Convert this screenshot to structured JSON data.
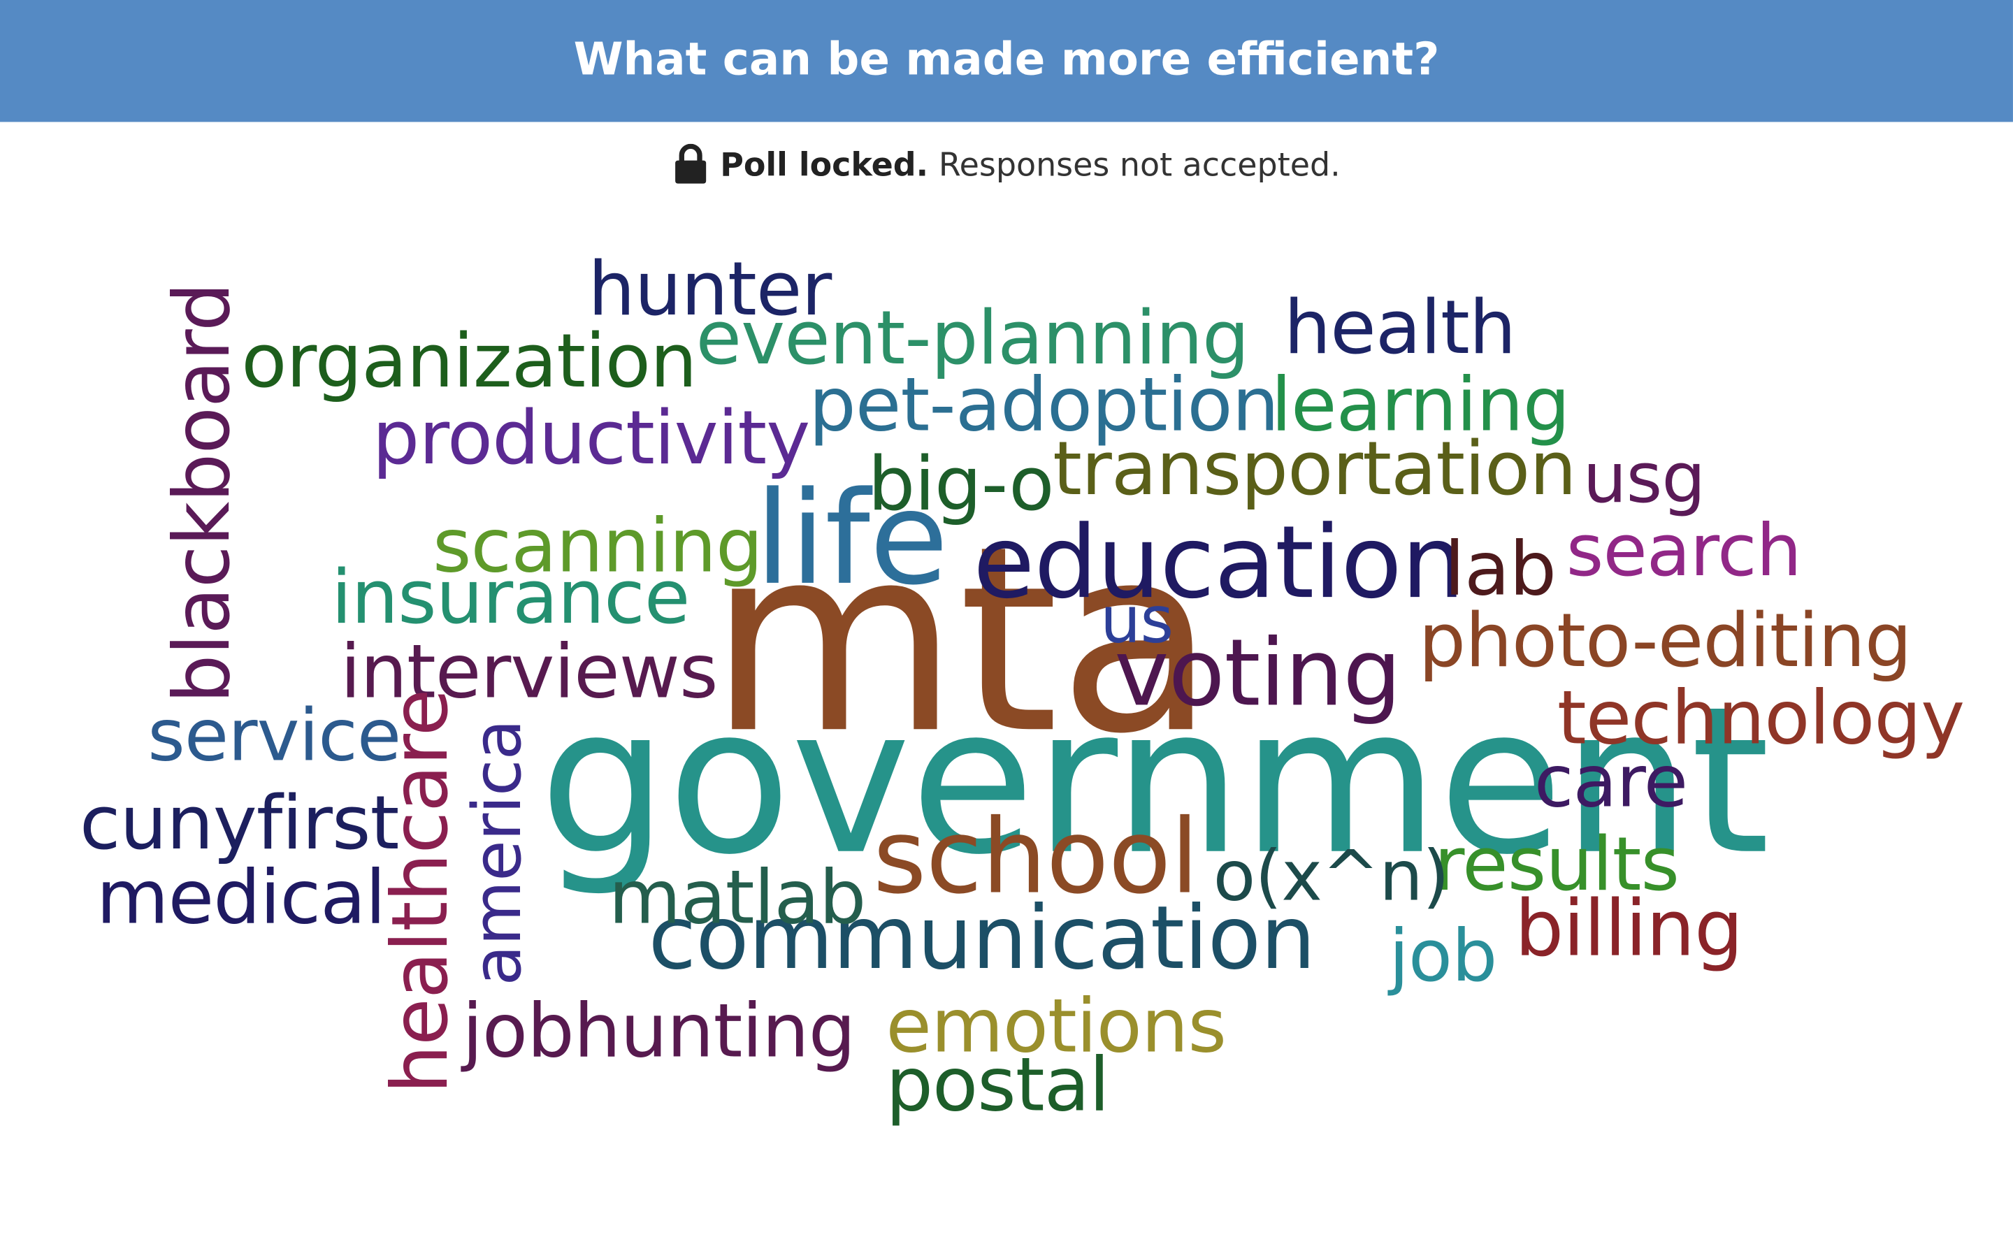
{
  "header": {
    "title": "What can be made more efficient?"
  },
  "status": {
    "icon": "lock-icon",
    "bold": "Poll locked.",
    "text": "Responses not accepted."
  },
  "words": [
    {
      "text": "mta",
      "color": "#8b4a25"
    },
    {
      "text": "government",
      "color": "#26938a"
    },
    {
      "text": "life",
      "color": "#2d6f9a"
    },
    {
      "text": "education",
      "color": "#1f1a62"
    },
    {
      "text": "voting",
      "color": "#4d164f"
    },
    {
      "text": "communication",
      "color": "#1c4f66"
    },
    {
      "text": "school",
      "color": "#8b4a25"
    },
    {
      "text": "technology",
      "color": "#8f3527"
    },
    {
      "text": "photo-editing",
      "color": "#8a4525"
    },
    {
      "text": "search",
      "color": "#912787"
    },
    {
      "text": "transportation",
      "color": "#5a5f18"
    },
    {
      "text": "learning",
      "color": "#23904a"
    },
    {
      "text": "pet-adoption",
      "color": "#2b6f92"
    },
    {
      "text": "event-planning",
      "color": "#2c9068"
    },
    {
      "text": "health",
      "color": "#1c2466"
    },
    {
      "text": "hunter",
      "color": "#1c2466"
    },
    {
      "text": "organization",
      "color": "#1d5e1c"
    },
    {
      "text": "productivity",
      "color": "#5b2a93"
    },
    {
      "text": "big-o",
      "color": "#1d5e2a"
    },
    {
      "text": "usg",
      "color": "#5a1a57"
    },
    {
      "text": "scanning",
      "color": "#5e9a2a"
    },
    {
      "text": "insurance",
      "color": "#249070"
    },
    {
      "text": "interviews",
      "color": "#571a4f"
    },
    {
      "text": "lab",
      "color": "#4d1a1c"
    },
    {
      "text": "us",
      "color": "#2c3f98"
    },
    {
      "text": "service",
      "color": "#2c5a8e"
    },
    {
      "text": "cunyfirst",
      "color": "#1c1f5e"
    },
    {
      "text": "medical",
      "color": "#1f1a62"
    },
    {
      "text": "care",
      "color": "#3d1a62"
    },
    {
      "text": "results",
      "color": "#37902a"
    },
    {
      "text": "o(x^n)",
      "color": "#1c4a4a"
    },
    {
      "text": "matlab",
      "color": "#245e4d"
    },
    {
      "text": "job",
      "color": "#2a8f9a"
    },
    {
      "text": "billing",
      "color": "#8a2328"
    },
    {
      "text": "emotions",
      "color": "#9a8f2c"
    },
    {
      "text": "postal",
      "color": "#1d5e2a"
    },
    {
      "text": "jobhunting",
      "color": "#571a4f"
    },
    {
      "text": "blackboard",
      "color": "#5a1a57"
    },
    {
      "text": "healthcare",
      "color": "#8a1f4f"
    },
    {
      "text": "america",
      "color": "#3a2a8a"
    }
  ]
}
